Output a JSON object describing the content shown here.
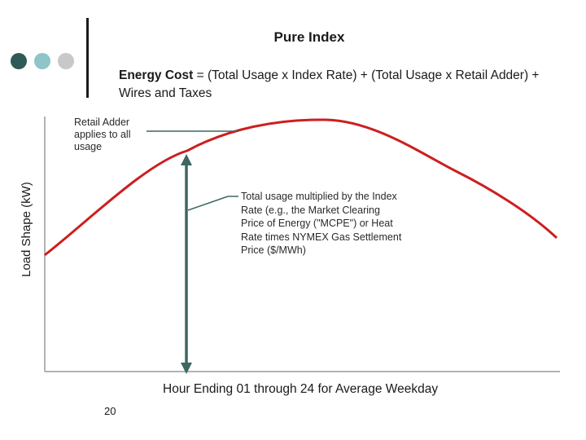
{
  "slide": {
    "title": "Pure Index",
    "formula_bold": "Energy Cost",
    "formula_rest": " = (Total Usage x Index Rate) + (Total Usage x Retail Adder) + Wires and Taxes",
    "y_axis_label": "Load Shape (kW)",
    "x_axis_label": "Hour Ending 01 through 24 for Average Weekday",
    "retail_annotation": "Retail Adder applies to all usage",
    "index_annotation": "Total usage multiplied by the Index Rate (e.g., the Market Clearing Price of Energy (\"MCPE\") or Heat Rate times NYMEX Gas Settlement Price ($/MWh)",
    "page_number": "20"
  },
  "decor": {
    "dots": [
      "#2e5b57",
      "#8fc4c9",
      "#c8c8c8"
    ]
  },
  "colors": {
    "curve": "#cc1f1f",
    "arrow": "#3d6663",
    "axis": "#9a9a9a",
    "leader": "#3d6663"
  }
}
